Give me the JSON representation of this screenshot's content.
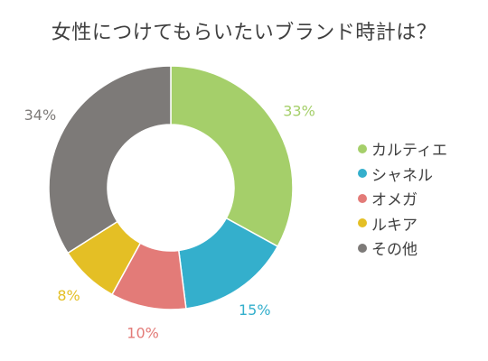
{
  "chart_data": {
    "type": "pie",
    "title": "女性につけてもらいたいブランド時計は？",
    "categories": [
      "カルティエ",
      "シャネル",
      "オメガ",
      "ルキア",
      "その他"
    ],
    "values": [
      33,
      15,
      10,
      8,
      34
    ],
    "value_labels": [
      "33%",
      "15%",
      "10%",
      "8%",
      "34%"
    ],
    "colors": [
      "#a5cf6a",
      "#34afcc",
      "#e37b78",
      "#e4bf25",
      "#7d7a78"
    ],
    "donut": true,
    "legend": "right"
  }
}
